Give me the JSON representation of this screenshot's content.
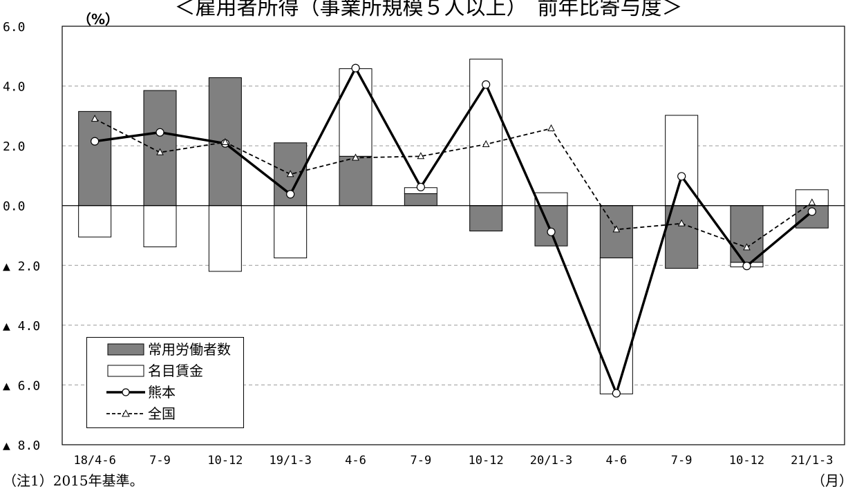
{
  "title": "＜雇用者所得（事業所規模５人以上）　前年比寄与度＞",
  "unit_label": "（%）",
  "note": "（注1）2015年基準。",
  "x_unit": "（月）",
  "chart_data": {
    "type": "bar",
    "title": "＜雇用者所得（事業所規模５人以上）　前年比寄与度＞",
    "xlabel": "（月）",
    "ylabel": "（%）",
    "categories": [
      "18/4-6",
      "7-9",
      "10-12",
      "19/1-3",
      "4-6",
      "7-9",
      "10-12",
      "20/1-3",
      "4-6",
      "7-9",
      "10-12",
      "21/1-3"
    ],
    "ylim": [
      -8,
      6
    ],
    "yticks": [
      6,
      4,
      2,
      0,
      -2,
      -4,
      -6,
      -8
    ],
    "ytick_labels": [
      "6.0",
      "4.0",
      "2.0",
      "0.0",
      "▲ 2.0",
      "▲ 4.0",
      "▲ 6.0",
      "▲ 8.0"
    ],
    "grid": true,
    "legend_position": "bottom-left",
    "stacked": true,
    "series": [
      {
        "name": "常用労働者数",
        "kind": "bar",
        "color": "#808080",
        "values": [
          3.15,
          3.85,
          4.28,
          2.1,
          1.65,
          0.4,
          -0.85,
          -1.35,
          -1.75,
          -2.1,
          -1.9,
          -0.75
        ]
      },
      {
        "name": "名目賃金",
        "kind": "bar",
        "color": "#ffffff",
        "values": [
          -1.05,
          -1.38,
          -2.2,
          -1.75,
          2.93,
          0.2,
          4.9,
          0.43,
          -4.55,
          3.02,
          -0.15,
          0.53
        ]
      },
      {
        "name": "熊本",
        "kind": "line",
        "style": "solid",
        "marker": "circle",
        "values": [
          2.15,
          2.45,
          2.08,
          0.38,
          4.6,
          0.62,
          4.05,
          -0.88,
          -6.28,
          0.98,
          -2.02,
          -0.2
        ]
      },
      {
        "name": "全国",
        "kind": "line",
        "style": "dashed",
        "marker": "triangle",
        "values": [
          2.9,
          1.78,
          2.12,
          1.05,
          1.6,
          1.65,
          2.05,
          2.58,
          -0.8,
          -0.6,
          -1.4,
          0.1
        ]
      }
    ]
  }
}
